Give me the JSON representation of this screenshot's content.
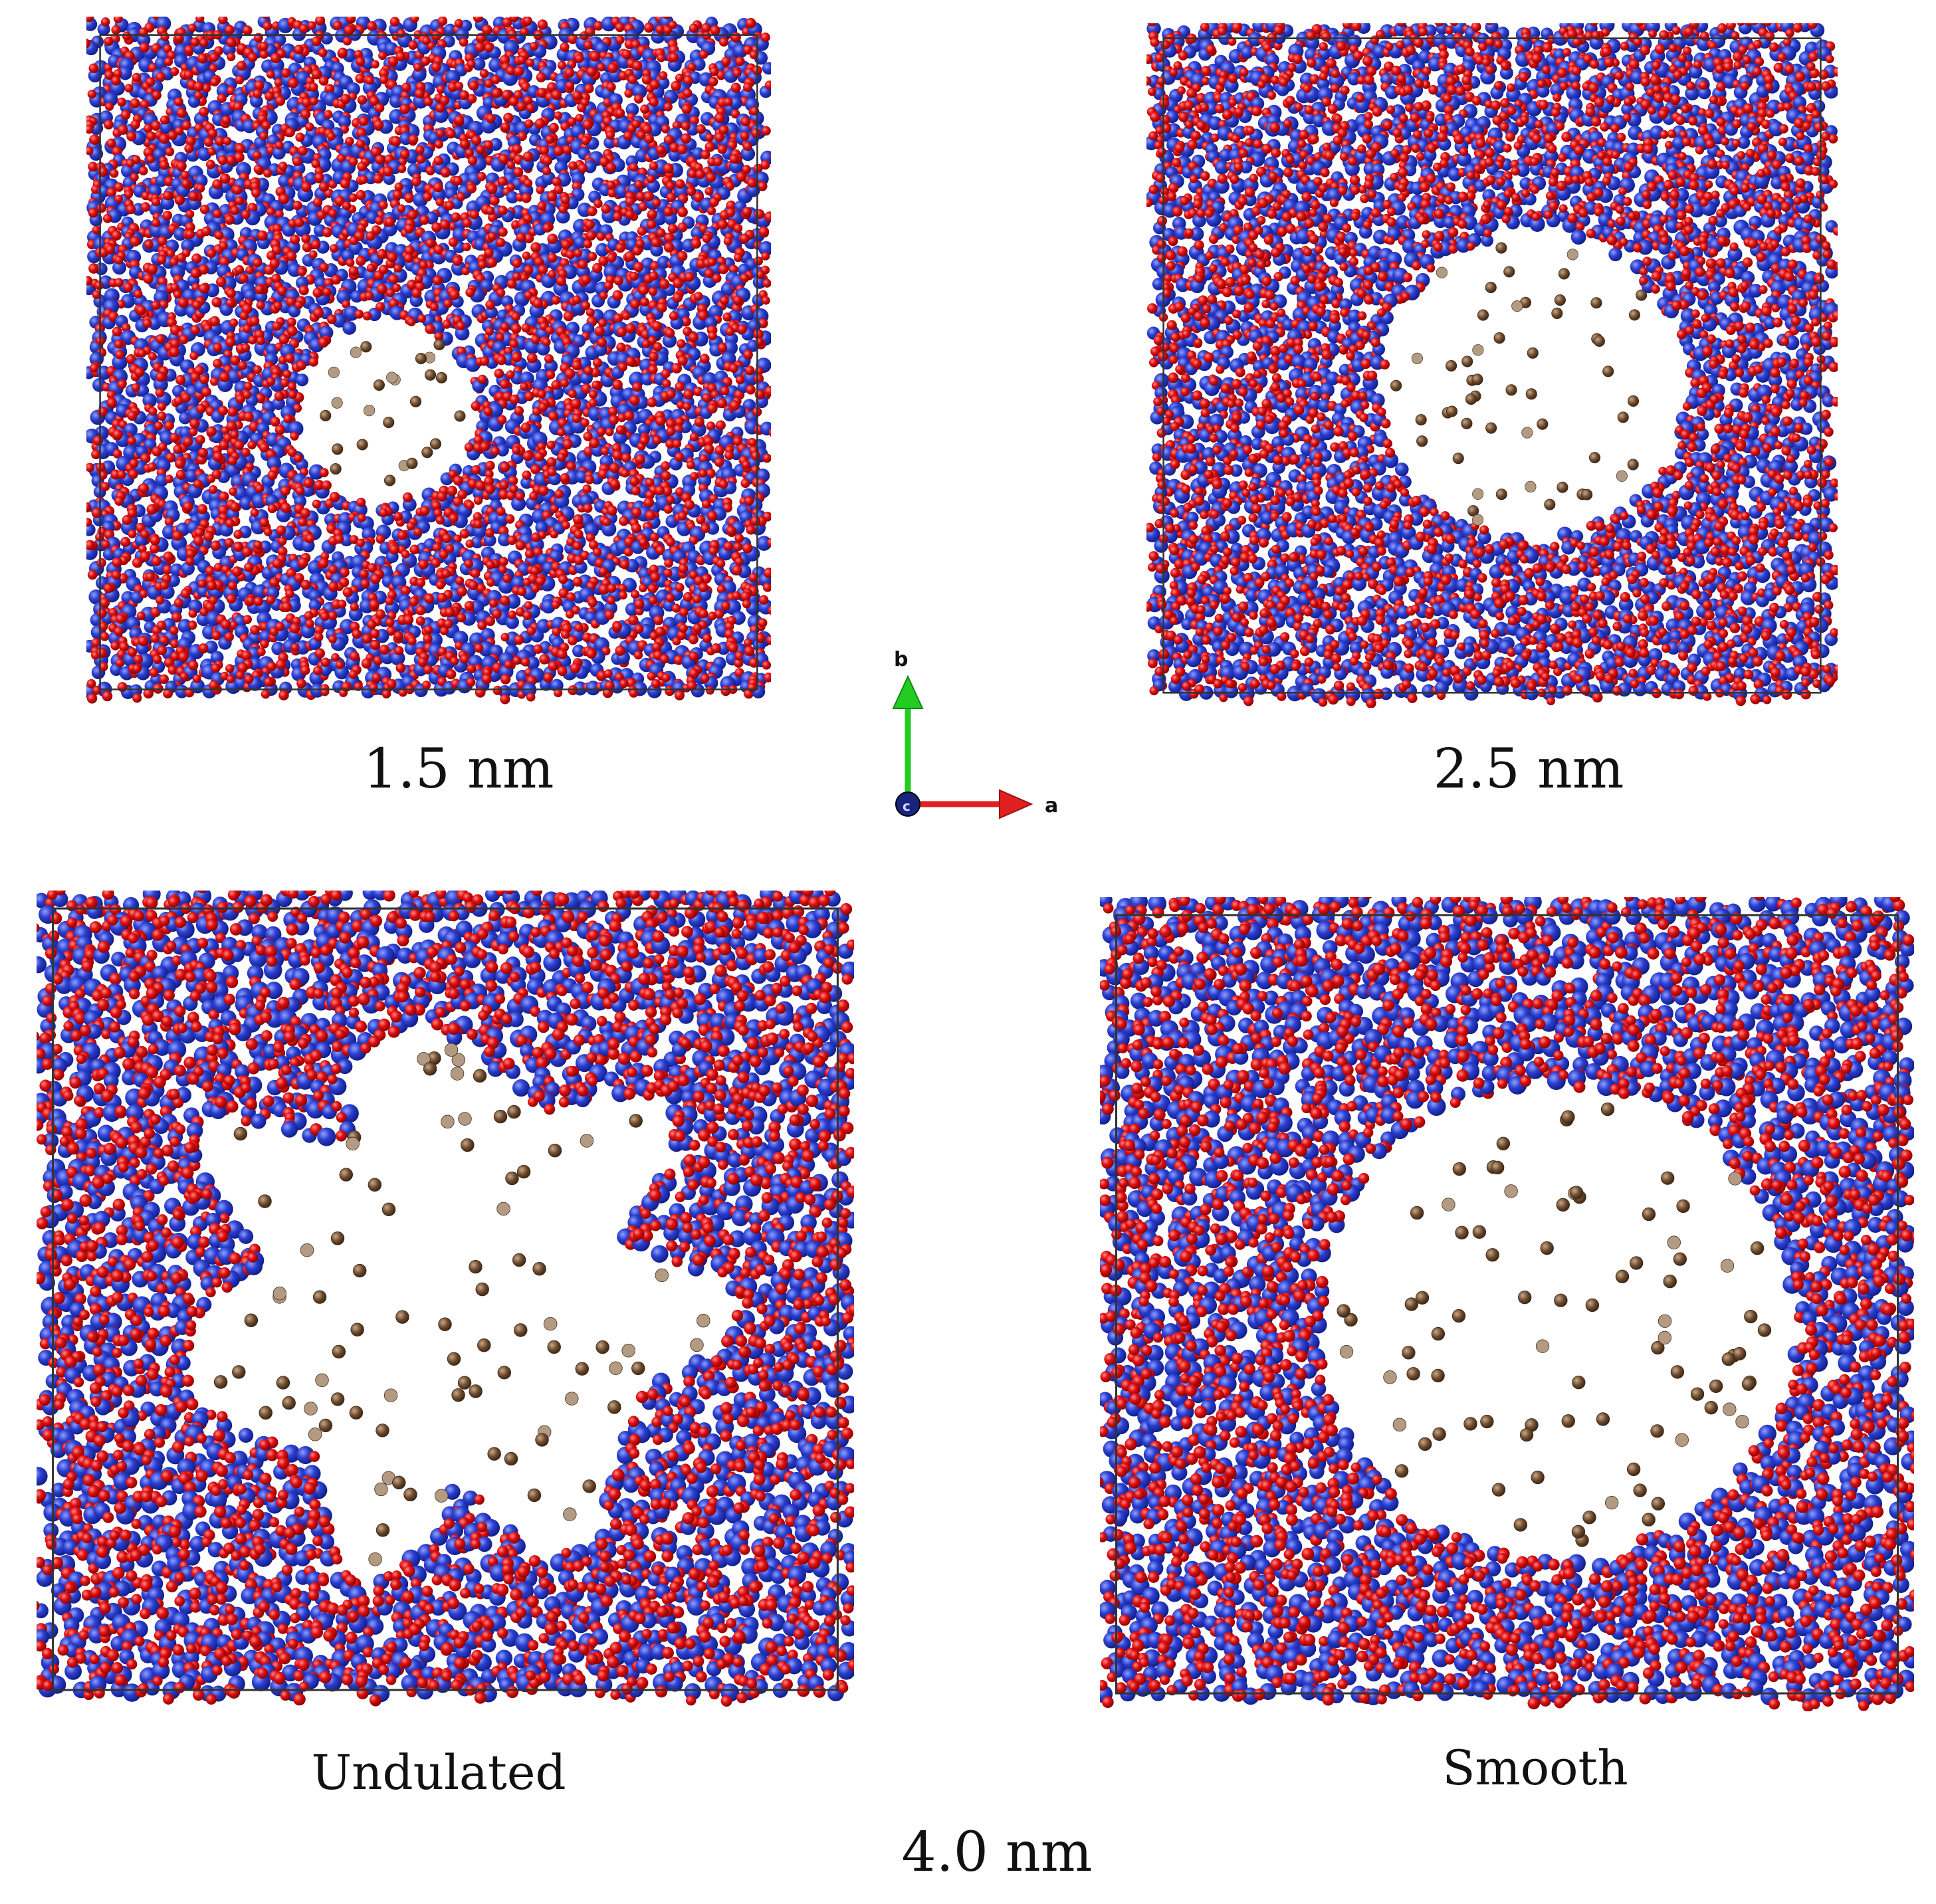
{
  "colors": {
    "matrix_blue": "#2b3fcf",
    "matrix_red": "#e01010",
    "particle_brown": "#6b4a2e",
    "particle_tan": "#b39a82",
    "box_line": "#333333",
    "axis_b": "#22cc22",
    "axis_a": "#e02020",
    "axis_c": "#1a237e"
  },
  "panels": [
    {
      "id": "p15",
      "label": "1.5 nm",
      "pore": "small-round"
    },
    {
      "id": "p25",
      "label": "2.5 nm",
      "pore": "medium-round"
    },
    {
      "id": "und",
      "label": "Undulated",
      "pore": "large-undulated"
    },
    {
      "id": "smo",
      "label": "Smooth",
      "pore": "large-smooth"
    }
  ],
  "axes": {
    "b": "b",
    "a": "a",
    "c": "c"
  },
  "group_label": "4.0 nm"
}
